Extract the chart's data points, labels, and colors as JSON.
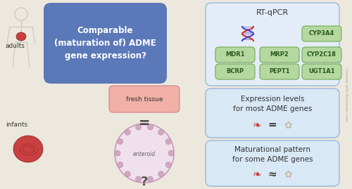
{
  "bg_color": "#ede8de",
  "question_text": "Comparable\n(maturation of) ADME\ngene expression?",
  "question_box_color": "#5b78b8",
  "question_text_color": "#ffffff",
  "adults_label": "adults",
  "infants_label": "infants",
  "fresh_tissue_label": "fresh tissue",
  "enteroid_label": "enteroid",
  "equals_sign": "=",
  "question_mark": "?",
  "rt_qpcr_label": "RT-qPCR",
  "rt_box_bg": "#e4edf7",
  "rt_box_border": "#99b8d8",
  "gene_box_color": "#b5d8a0",
  "gene_box_border": "#70aa55",
  "genes": [
    [
      "MDR1",
      "MRP2",
      "CYP3A4"
    ],
    [
      "BCRP",
      "PEPT1",
      "CYP2C18"
    ],
    [
      "",
      "",
      "UGT1A1"
    ]
  ],
  "result1_text": "Expression levels\nfor most ADME genes",
  "result1_symbol": "=",
  "result2_text": "Maturational pattern\nfor some ADME genes",
  "result2_symbol": "≈",
  "result_box_bg": "#d8e8f5",
  "result_box_border": "#99b8d8",
  "watermark": "Created with Biorender.com",
  "watermark_color": "#aaaaaa",
  "silhouette_color": "#d0ccc4",
  "intestine_color": "#c84040",
  "intestine_edge": "#8b1a1a",
  "tissue_box_color": "#f0b0a8",
  "tissue_box_edge": "#d08080",
  "enteroid_fill": "#f0e0ec",
  "enteroid_edge": "#c898b8",
  "dna_color1": "#cc3333",
  "dna_color2": "#4444cc"
}
